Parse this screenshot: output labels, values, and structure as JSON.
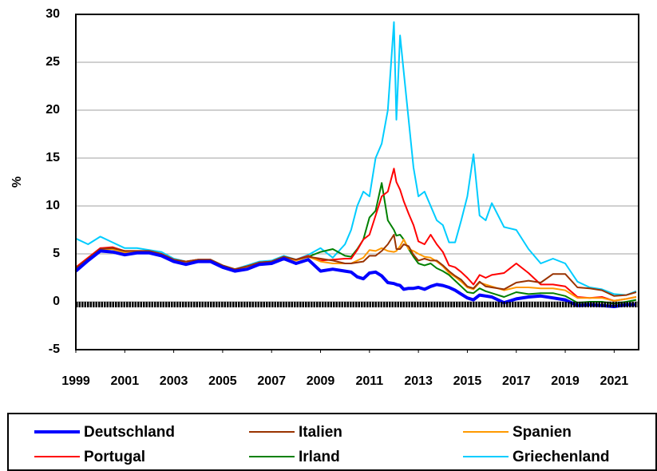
{
  "chart_data": {
    "type": "line",
    "y_label": "%",
    "xlim": [
      1999,
      2022
    ],
    "xticks": [
      1999,
      2001,
      2003,
      2005,
      2007,
      2009,
      2011,
      2013,
      2015,
      2017,
      2019,
      2021
    ],
    "ylim": [
      -5,
      30
    ],
    "yticks": [
      -5,
      0,
      5,
      10,
      15,
      20,
      25,
      30
    ],
    "grid": true,
    "legend": "bottom",
    "x": [
      1999,
      1999.5,
      2000,
      2000.5,
      2001,
      2001.5,
      2002,
      2002.5,
      2003,
      2003.5,
      2004,
      2004.5,
      2005,
      2005.5,
      2006,
      2006.5,
      2007,
      2007.5,
      2008,
      2008.5,
      2009,
      2009.5,
      2010,
      2010.25,
      2010.5,
      2010.75,
      2011,
      2011.25,
      2011.5,
      2011.75,
      2012,
      2012.1,
      2012.25,
      2012.4,
      2012.6,
      2012.8,
      2013,
      2013.25,
      2013.5,
      2013.75,
      2014,
      2014.25,
      2014.5,
      2014.75,
      2015,
      2015.25,
      2015.5,
      2015.75,
      2016,
      2016.5,
      2017,
      2017.5,
      2018,
      2018.5,
      2019,
      2019.5,
      2020,
      2020.5,
      2021,
      2021.5,
      2021.9
    ],
    "series": [
      {
        "name": "Deutschland",
        "color": "#0000ff",
        "width": 4,
        "values": [
          3.2,
          4.3,
          5.3,
          5.2,
          4.9,
          5.1,
          5.1,
          4.8,
          4.2,
          3.9,
          4.2,
          4.2,
          3.6,
          3.2,
          3.4,
          3.9,
          4.0,
          4.5,
          4.0,
          4.4,
          3.2,
          3.4,
          3.2,
          3.1,
          2.6,
          2.4,
          3.0,
          3.1,
          2.7,
          2.0,
          1.9,
          1.8,
          1.7,
          1.3,
          1.4,
          1.4,
          1.5,
          1.3,
          1.6,
          1.8,
          1.7,
          1.5,
          1.2,
          0.8,
          0.4,
          0.2,
          0.7,
          0.6,
          0.5,
          -0.1,
          0.3,
          0.5,
          0.6,
          0.4,
          0.2,
          -0.4,
          -0.3,
          -0.4,
          -0.5,
          -0.3,
          -0.3
        ]
      },
      {
        "name": "Italien",
        "color": "#993300",
        "width": 2,
        "values": [
          3.5,
          4.5,
          5.5,
          5.6,
          5.3,
          5.3,
          5.3,
          5.0,
          4.4,
          4.2,
          4.4,
          4.4,
          3.8,
          3.4,
          3.7,
          4.1,
          4.2,
          4.7,
          4.4,
          4.7,
          4.5,
          4.3,
          4.0,
          4.0,
          4.1,
          4.2,
          4.8,
          4.8,
          5.3,
          6.0,
          7.0,
          5.5,
          5.5,
          6.0,
          5.8,
          4.9,
          4.3,
          4.5,
          4.3,
          4.3,
          3.8,
          3.2,
          2.7,
          2.3,
          1.6,
          1.4,
          2.1,
          1.6,
          1.5,
          1.3,
          2.0,
          2.2,
          2.0,
          2.9,
          2.9,
          1.5,
          1.4,
          1.2,
          0.6,
          0.7,
          1.0
        ]
      },
      {
        "name": "Spanien",
        "color": "#ff9900",
        "width": 2,
        "values": [
          3.4,
          4.4,
          5.4,
          5.5,
          5.1,
          5.2,
          5.2,
          4.9,
          4.3,
          4.0,
          4.3,
          4.3,
          3.6,
          3.3,
          3.6,
          4.0,
          4.1,
          4.6,
          4.3,
          4.7,
          4.2,
          4.0,
          4.0,
          4.0,
          4.3,
          4.6,
          5.4,
          5.3,
          5.6,
          5.3,
          5.2,
          5.3,
          5.8,
          6.5,
          5.5,
          5.3,
          5.0,
          4.7,
          4.6,
          4.2,
          3.7,
          3.0,
          2.6,
          2.1,
          1.5,
          1.3,
          2.0,
          1.8,
          1.6,
          1.2,
          1.5,
          1.5,
          1.4,
          1.4,
          1.2,
          0.4,
          0.4,
          0.4,
          0.1,
          0.3,
          0.5
        ]
      },
      {
        "name": "Portugal",
        "color": "#ff0000",
        "width": 2,
        "values": [
          3.6,
          4.6,
          5.6,
          5.7,
          5.3,
          5.3,
          5.3,
          5.0,
          4.4,
          4.2,
          4.4,
          4.4,
          3.7,
          3.4,
          3.7,
          4.1,
          4.2,
          4.7,
          4.4,
          4.8,
          4.3,
          4.4,
          4.5,
          4.5,
          5.4,
          6.5,
          7.0,
          9.0,
          11.0,
          11.5,
          13.9,
          12.5,
          11.7,
          10.5,
          9.2,
          8.0,
          6.3,
          6.0,
          7.0,
          6.0,
          5.2,
          3.8,
          3.6,
          3.1,
          2.5,
          1.8,
          2.8,
          2.5,
          2.8,
          3.0,
          4.0,
          3.0,
          1.8,
          1.8,
          1.6,
          0.5,
          0.4,
          0.5,
          0.1,
          0.3,
          0.5
        ]
      },
      {
        "name": "Irland",
        "color": "#008000",
        "width": 2,
        "values": [
          3.4,
          4.5,
          5.5,
          5.5,
          5.1,
          5.2,
          5.2,
          4.9,
          4.3,
          4.0,
          4.3,
          4.3,
          3.7,
          3.3,
          3.6,
          4.0,
          4.1,
          4.6,
          4.4,
          4.7,
          5.2,
          5.5,
          4.8,
          4.7,
          5.5,
          6.5,
          8.8,
          9.5,
          12.4,
          8.5,
          7.5,
          6.9,
          7.0,
          6.5,
          5.5,
          4.7,
          4.0,
          3.8,
          4.0,
          3.5,
          3.2,
          2.8,
          2.2,
          1.6,
          1.0,
          0.9,
          1.4,
          1.1,
          0.9,
          0.5,
          1.0,
          0.8,
          0.9,
          0.9,
          0.6,
          -0.1,
          0.0,
          0.0,
          -0.2,
          0.0,
          0.2
        ]
      },
      {
        "name": "Griechenland",
        "color": "#00ccff",
        "width": 2,
        "values": [
          6.6,
          6.0,
          6.8,
          6.2,
          5.6,
          5.6,
          5.4,
          5.2,
          4.5,
          4.2,
          4.4,
          4.4,
          3.8,
          3.4,
          3.8,
          4.2,
          4.3,
          4.8,
          4.4,
          4.9,
          5.6,
          4.6,
          6.0,
          7.5,
          10.0,
          11.5,
          11.0,
          15.0,
          16.5,
          20.0,
          29.2,
          19.0,
          27.8,
          24.0,
          19.0,
          14.0,
          11.0,
          11.5,
          10.0,
          8.5,
          8.0,
          6.2,
          6.2,
          8.5,
          11.0,
          15.4,
          9.0,
          8.5,
          10.3,
          7.8,
          7.5,
          5.5,
          4.0,
          4.5,
          4.0,
          2.1,
          1.5,
          1.3,
          0.8,
          0.7,
          1.1
        ]
      }
    ]
  }
}
